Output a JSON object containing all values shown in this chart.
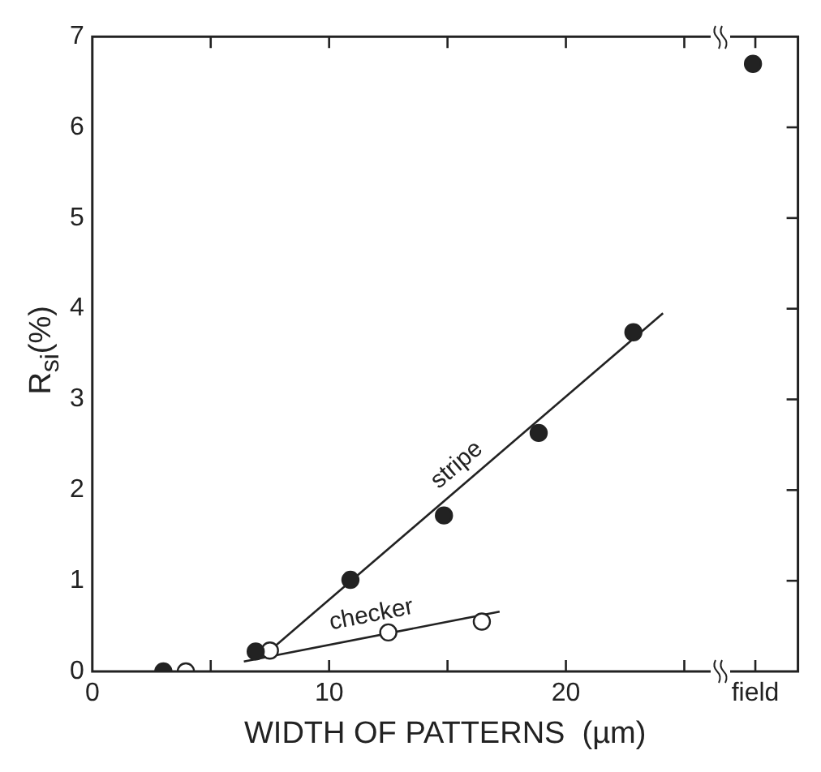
{
  "chart_data": {
    "type": "scatter",
    "xlabel": "WIDTH OF PATTERNS  (µm)",
    "ylabel": "R$_{si}$(%)",
    "xlim": [
      0,
      29.8
    ],
    "xticks": [
      0,
      {
        "value": 5,
        "label": null
      },
      10,
      {
        "value": 15,
        "label": null
      },
      20,
      {
        "value": 25,
        "label": null
      },
      {
        "value": 28,
        "label": "field"
      }
    ],
    "ylim": [
      0,
      7
    ],
    "yticks": [
      0,
      1,
      2,
      3,
      4,
      5,
      6,
      7
    ],
    "grid": false,
    "legend": false,
    "series": [
      {
        "marker": "circle",
        "color": "#222222",
        "x": [
          3,
          6.9,
          10.9,
          14.85,
          18.85,
          22.85,
          27.9
        ],
        "values": [
          0,
          0.22,
          1.01,
          1.72,
          2.63,
          3.74,
          6.7
        ]
      },
      {
        "marker": "circle",
        "color": "#ffffff",
        "x": [
          3.95,
          7.5,
          12.5,
          16.45
        ],
        "values": [
          0,
          0.23,
          0.43,
          0.55
        ]
      },
      {
        "type": "line",
        "name": "stripe",
        "color": "#222222",
        "x": [
          7.45,
          24.1
        ],
        "values": [
          0.22,
          3.95
        ]
      },
      {
        "type": "line",
        "name": "checker",
        "color": "#222222",
        "x": [
          6.4,
          17.2
        ],
        "values": [
          0.11,
          0.66
        ]
      }
    ]
  }
}
